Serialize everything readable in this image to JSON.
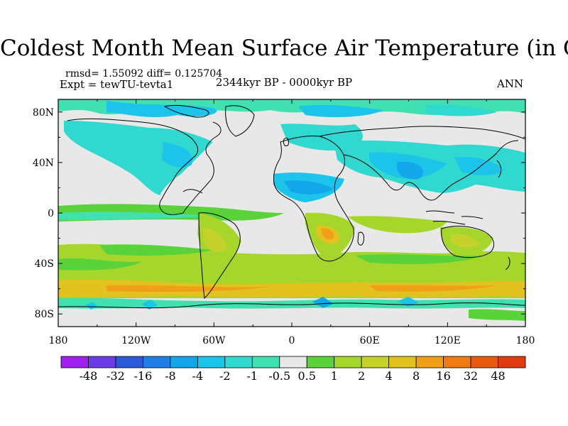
{
  "figure": {
    "title": "Coldest Month Mean Surface Air Temperature (in C)",
    "stats": "rmsd= 1.55092 diff= 0.125704",
    "experiment": "Expt = tewTU-tevta1",
    "period": "2344kyr BP - 0000kyr BP",
    "season": "ANN"
  },
  "map": {
    "projection": "equirectangular",
    "lon_range": [
      -180,
      180
    ],
    "lat_range": [
      -90,
      90
    ],
    "x_ticks": [
      "180",
      "120W",
      "60W",
      "0",
      "60E",
      "120E",
      "180"
    ],
    "y_ticks": [
      "80N",
      "40N",
      "0",
      "40S",
      "80S"
    ]
  },
  "colorbar": {
    "labels": [
      "-48",
      "-32",
      "-16",
      "-8",
      "-4",
      "-2",
      "-1",
      "-0.5",
      "0.5",
      "1",
      "2",
      "4",
      "8",
      "16",
      "32",
      "48"
    ],
    "colors": [
      "#a020f0",
      "#6a3de8",
      "#2a5ad8",
      "#1e7ee6",
      "#14a6ea",
      "#1cc4ea",
      "#30d8d0",
      "#40e0b0",
      "#e8e8e8",
      "#5ad23a",
      "#a6d62c",
      "#c6d22c",
      "#e2c21e",
      "#f0a018",
      "#f07a14",
      "#e85a10",
      "#e03a10"
    ]
  }
}
